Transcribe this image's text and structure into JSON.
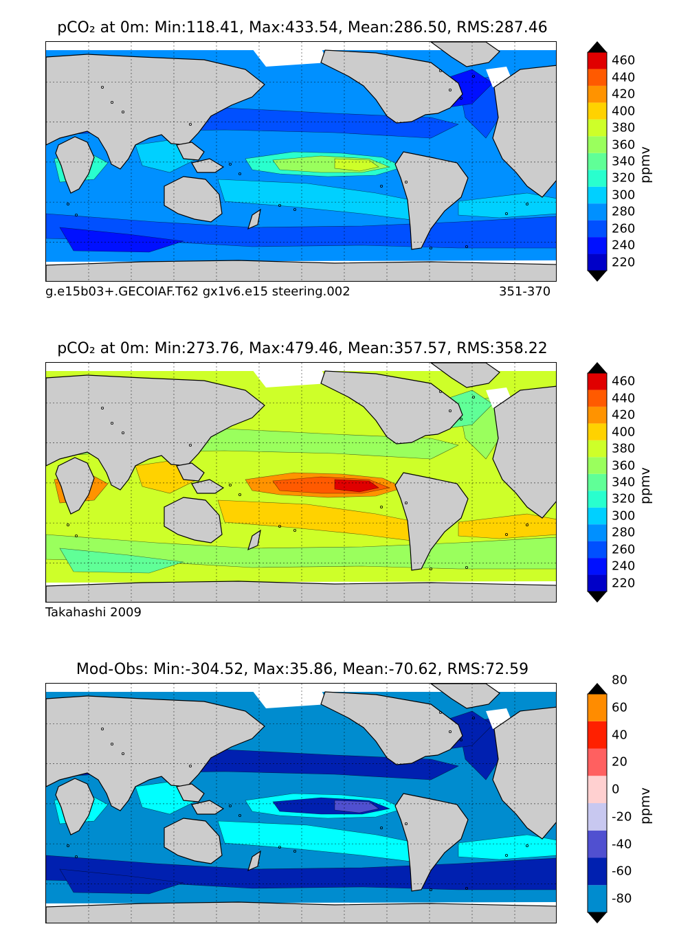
{
  "panels": [
    {
      "title": "pCO₂ at 0m: Min:118.41, Max:433.54, Mean:286.50, RMS:287.46",
      "caption_left": "g.e15b03+.GECOIAF.T62 gx1v6.e15 steering.002",
      "caption_right": "351-370",
      "colorbar": {
        "unit": "ppmv",
        "ticks": [
          "220",
          "240",
          "260",
          "280",
          "300",
          "320",
          "340",
          "360",
          "380",
          "400",
          "420",
          "440",
          "460"
        ],
        "colors": [
          "#00007f",
          "#0000c8",
          "#0010ff",
          "#0050ff",
          "#0090ff",
          "#00d0ff",
          "#29ffce",
          "#60ff97",
          "#9aff5d",
          "#ceff29",
          "#ffd200",
          "#ff9300",
          "#ff5a00",
          "#e00000",
          "#7f0000"
        ],
        "extend": "both"
      },
      "fields": {
        "base": "#0090ff",
        "band1": "#0050ff",
        "band2": "#00d0ff",
        "band3": "#29ffce",
        "band4": "#9aff5d",
        "band5": "#ceff29",
        "band6": "#0010ff"
      }
    },
    {
      "title": "pCO₂ at 0m: Min:273.76, Max:479.46, Mean:357.57, RMS:358.22",
      "caption_left": "Takahashi 2009",
      "caption_right": "",
      "colorbar": {
        "unit": "ppmv",
        "ticks": [
          "220",
          "240",
          "260",
          "280",
          "300",
          "320",
          "340",
          "360",
          "380",
          "400",
          "420",
          "440",
          "460"
        ],
        "colors": [
          "#00007f",
          "#0000c8",
          "#0010ff",
          "#0050ff",
          "#0090ff",
          "#00d0ff",
          "#29ffce",
          "#60ff97",
          "#9aff5d",
          "#ceff29",
          "#ffd200",
          "#ff9300",
          "#ff5a00",
          "#e00000",
          "#7f0000"
        ],
        "extend": "both"
      },
      "fields": {
        "base": "#ceff29",
        "band1": "#9aff5d",
        "band2": "#ffd200",
        "band3": "#ff9300",
        "band4": "#ff5a00",
        "band5": "#e00000",
        "band6": "#60ff97"
      }
    },
    {
      "title": "Mod-Obs: Min:-304.52, Max:35.86, Mean:-70.62, RMS:72.59",
      "caption_left": "",
      "caption_right": "",
      "colorbar": {
        "unit": "ppmv",
        "ticks": [
          "-80",
          "-60",
          "-40",
          "-20",
          "0",
          "20",
          "40",
          "60",
          "80"
        ],
        "colors": [
          "#00ffff",
          "#008ccf",
          "#0020b0",
          "#5050d0",
          "#c8c8f0",
          "#ffd0d0",
          "#ff6060",
          "#ff2000",
          "#ff8c00",
          "#ffff00"
        ],
        "extend": "both"
      },
      "fields": {
        "base": "#008ccf",
        "band1": "#0020b0",
        "band2": "#00ffff",
        "band3": "#00ffff",
        "band4": "#0020b0",
        "band5": "#5050d0",
        "band6": "#0020b0"
      }
    }
  ],
  "colors": {
    "land": "#cccccc",
    "coast": "#000000",
    "grid": "#000000",
    "background": "#ffffff"
  }
}
